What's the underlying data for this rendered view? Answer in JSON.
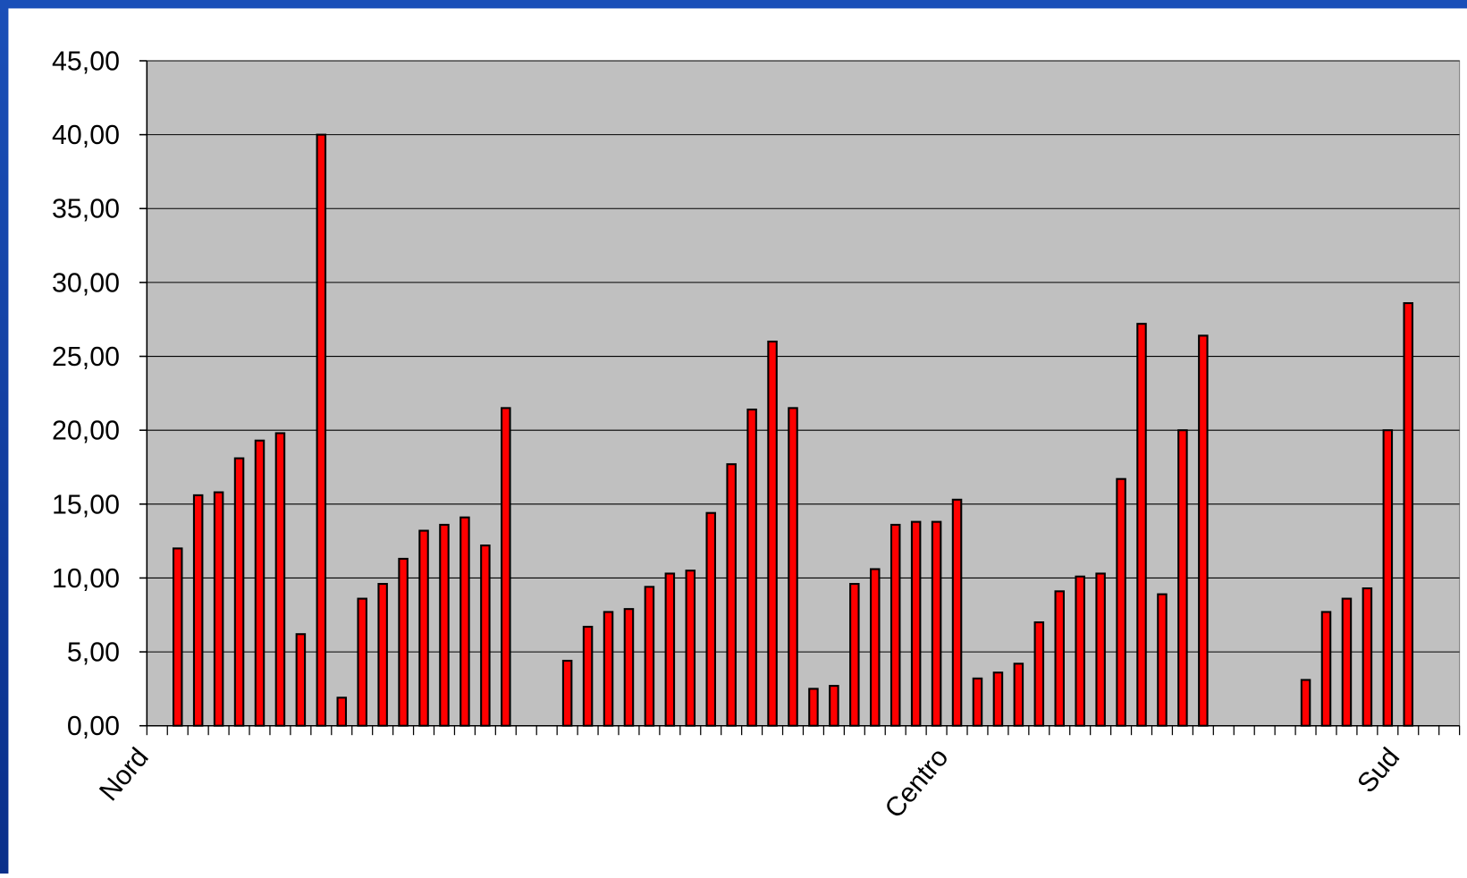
{
  "chart_data": {
    "type": "bar",
    "categories": [
      "Nord",
      null,
      null,
      null,
      null,
      null,
      null,
      null,
      null,
      null,
      null,
      null,
      null,
      null,
      null,
      null,
      null,
      null,
      null,
      null,
      null,
      null,
      null,
      null,
      null,
      null,
      null,
      null,
      null,
      null,
      null,
      null,
      null,
      null,
      null,
      null,
      null,
      null,
      null,
      "Centro",
      null,
      null,
      null,
      null,
      null,
      null,
      null,
      null,
      null,
      null,
      null,
      null,
      null,
      null,
      null,
      null,
      null,
      null,
      null,
      null,
      null,
      "Sud",
      null,
      null
    ],
    "values": [
      null,
      12.0,
      15.6,
      15.8,
      18.1,
      19.3,
      19.8,
      6.2,
      40.0,
      1.9,
      8.6,
      9.6,
      11.3,
      13.2,
      13.6,
      14.1,
      12.2,
      21.5,
      null,
      null,
      4.4,
      6.7,
      7.7,
      7.9,
      9.4,
      10.3,
      10.5,
      14.4,
      17.7,
      21.4,
      26.0,
      21.5,
      2.5,
      2.7,
      9.6,
      10.6,
      13.6,
      13.8,
      13.8,
      15.3,
      3.2,
      3.6,
      4.2,
      7.0,
      9.1,
      10.1,
      10.3,
      16.7,
      27.2,
      8.9,
      20.0,
      26.4,
      null,
      null,
      null,
      null,
      3.1,
      7.7,
      8.6,
      9.3,
      20.0,
      28.6,
      null,
      null
    ],
    "color": "#ff0000",
    "ylim": [
      0,
      45
    ],
    "yticks": [
      {
        "value": 0,
        "label": "0,00"
      },
      {
        "value": 5,
        "label": "5,00"
      },
      {
        "value": 10,
        "label": "10,00"
      },
      {
        "value": 15,
        "label": "15,00"
      },
      {
        "value": 20,
        "label": "20,00"
      },
      {
        "value": 25,
        "label": "25,00"
      },
      {
        "value": 30,
        "label": "30,00"
      },
      {
        "value": 35,
        "label": "35,00"
      },
      {
        "value": 40,
        "label": "40,00"
      },
      {
        "value": 45,
        "label": "45,00"
      }
    ],
    "grid": true
  }
}
